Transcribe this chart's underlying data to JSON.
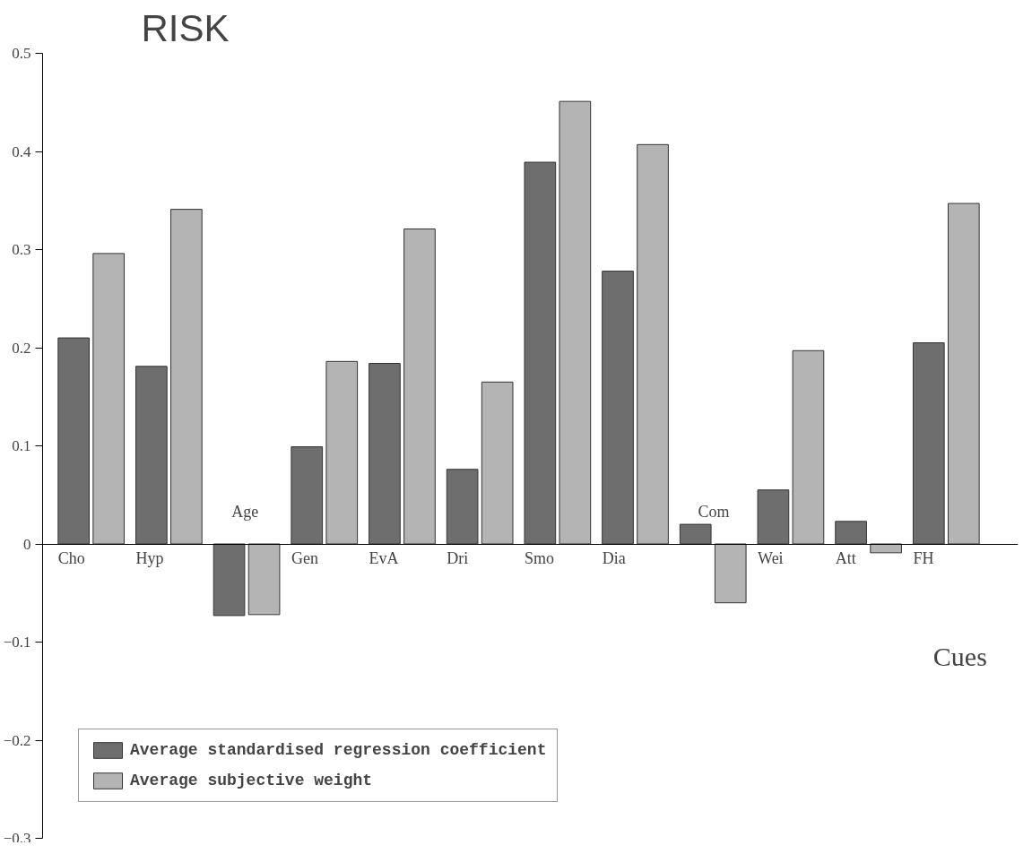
{
  "chart_data": {
    "type": "bar",
    "title": "RISK",
    "xlabel": "Cues",
    "categories": [
      "Cho",
      "Hyp",
      "Age",
      "Gen",
      "EvA",
      "Dri",
      "Smo",
      "Dia",
      "Com",
      "Wei",
      "Att",
      "FH"
    ],
    "series": [
      {
        "name": "Average standardised regression coefficient",
        "color": "#6e6e6e",
        "values": [
          0.21,
          0.181,
          -0.073,
          0.099,
          0.184,
          0.076,
          0.389,
          0.278,
          0.02,
          0.055,
          0.023,
          0.205
        ]
      },
      {
        "name": "Average subjective weight",
        "color": "#b4b4b4",
        "values": [
          0.296,
          0.341,
          -0.072,
          0.186,
          0.321,
          0.165,
          0.451,
          0.407,
          -0.06,
          0.197,
          -0.009,
          0.347
        ]
      }
    ],
    "ylim": [
      -0.3,
      0.5
    ],
    "yticks": [
      -0.3,
      -0.2,
      -0.1,
      0,
      0.1,
      0.2,
      0.3,
      0.4,
      0.5
    ],
    "grid": false,
    "legend": "bottom left"
  }
}
